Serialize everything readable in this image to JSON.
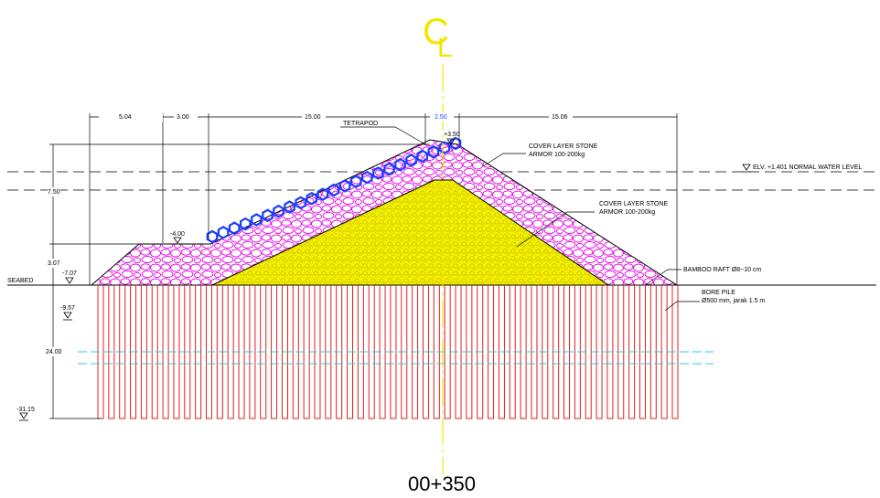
{
  "centerline": {
    "c": "C",
    "l": "L"
  },
  "station": "00+350",
  "dimensions": {
    "top": [
      "5.04",
      "3.00",
      "15.00",
      "2.50",
      "15.06"
    ],
    "vertical": [
      "7.50",
      "3.07",
      "24.00"
    ]
  },
  "elevations": {
    "crest": "+3.50",
    "berm": "-4.00",
    "seabed": "-7.07",
    "pile_mark": "-9.57",
    "pile_tip": "-31.15",
    "water": "ELV. +1.401 NORMAL WATER LEVEL"
  },
  "labels": {
    "tetrapod": "TETRAPOD",
    "seabed": "SEABED",
    "cover_outer_1": "COVER LAYER STONE",
    "cover_outer_2": "ARMOR 100-200kg",
    "cover_inner_1": "COVER LAYER STONE",
    "cover_inner_2": "ARMOR 100-200kg",
    "raft": "BAMBOO RAFT Ø8~10 cm",
    "pile_1": "BORE PILE",
    "pile_2": "Ø500 mm, jarak 1.5 m"
  },
  "colors": {
    "armor_rock": "#e000e0",
    "core": "#f4f000",
    "tetrapod": "#1a3cff",
    "piles": "#e02020",
    "cyan_lines": "#20d0e0",
    "centerline": "#f2e600"
  },
  "pile_count": 54
}
